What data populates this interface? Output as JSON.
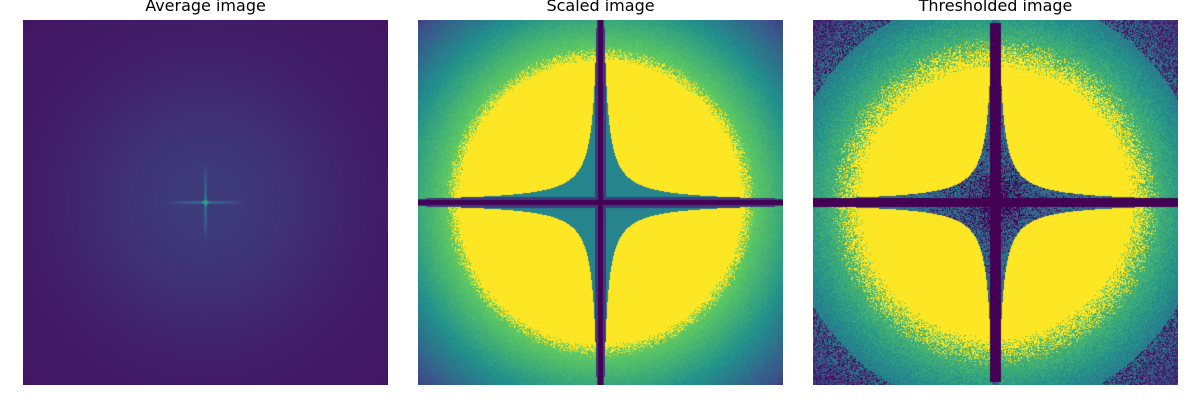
{
  "panels": [
    {
      "title": "Average image"
    },
    {
      "title": "Scaled image"
    },
    {
      "title": "Thresholded image"
    }
  ],
  "colors": {
    "dark": "#440154",
    "dark_blue": "#46337e",
    "blue": "#3b528b",
    "teal": "#21918c",
    "green": "#35b779",
    "yellow": "#fde725"
  },
  "colormap": "viridis"
}
